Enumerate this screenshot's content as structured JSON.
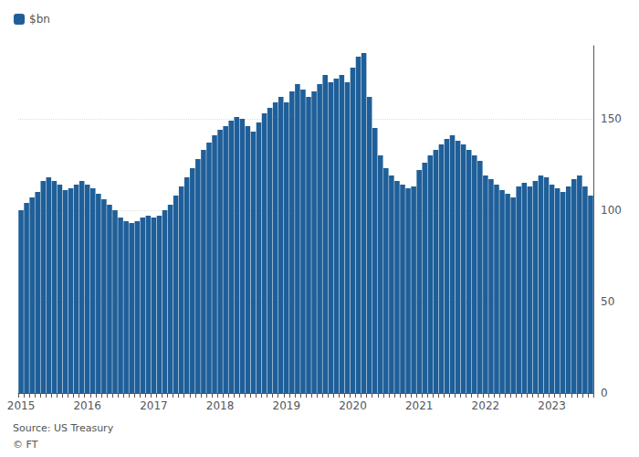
{
  "chart_data": {
    "type": "bar",
    "categories": [
      "2015",
      null,
      null,
      null,
      null,
      null,
      null,
      null,
      null,
      null,
      null,
      null,
      "2016",
      null,
      null,
      null,
      null,
      null,
      null,
      null,
      null,
      null,
      null,
      null,
      "2017",
      null,
      null,
      null,
      null,
      null,
      null,
      null,
      null,
      null,
      null,
      null,
      "2018",
      null,
      null,
      null,
      null,
      null,
      null,
      null,
      null,
      null,
      null,
      null,
      "2019",
      null,
      null,
      null,
      null,
      null,
      null,
      null,
      null,
      null,
      null,
      null,
      "2020",
      null,
      null,
      null,
      null,
      null,
      null,
      null,
      null,
      null,
      null,
      null,
      "2021",
      null,
      null,
      null,
      null,
      null,
      null,
      null,
      null,
      null,
      null,
      null,
      "2022",
      null,
      null,
      null,
      null,
      null,
      null,
      null,
      null,
      null,
      null,
      null,
      "2023",
      null,
      null,
      null,
      null,
      null,
      null,
      null
    ],
    "series": [
      {
        "name": "$bn",
        "color": "#1f5f99",
        "values": [
          100,
          104,
          107,
          110,
          116,
          118,
          116,
          114,
          111,
          112,
          114,
          116,
          114,
          112,
          109,
          106,
          103,
          100,
          96,
          94,
          93,
          94,
          96,
          97,
          96,
          97,
          100,
          103,
          108,
          113,
          118,
          123,
          128,
          133,
          137,
          141,
          144,
          146,
          149,
          151,
          150,
          146,
          143,
          148,
          153,
          156,
          159,
          162,
          159,
          165,
          169,
          166,
          162,
          165,
          169,
          174,
          170,
          172,
          174,
          170,
          178,
          184,
          186,
          162,
          145,
          130,
          123,
          119,
          116,
          114,
          112,
          113,
          122,
          126,
          130,
          133,
          136,
          139,
          141,
          138,
          136,
          133,
          130,
          127,
          119,
          117,
          114,
          111,
          109,
          107,
          113,
          115,
          113,
          116,
          119,
          118,
          114,
          112,
          110,
          113,
          117,
          119,
          113,
          108
        ]
      }
    ],
    "ylim": [
      0,
      190
    ],
    "yticks": [
      0,
      50,
      100,
      150
    ],
    "grid": true,
    "legend": "upper left",
    "annotations": [
      "Source: US Treasury",
      "© FT"
    ]
  }
}
